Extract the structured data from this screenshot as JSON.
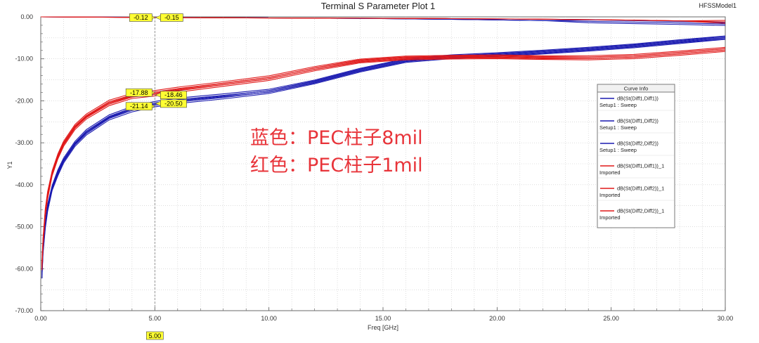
{
  "chart_data": {
    "type": "line",
    "title": "Terminal S Parameter Plot 1",
    "model_label": "HFSSModel1",
    "xlabel": "Freq [GHz]",
    "ylabel": "Y1",
    "xlim": [
      0,
      30
    ],
    "ylim": [
      -70,
      0
    ],
    "x_ticks": [
      "0.00",
      "5.00",
      "10.00",
      "15.00",
      "20.00",
      "25.00",
      "30.00"
    ],
    "y_ticks": [
      "0.00",
      "-10.00",
      "-20.00",
      "-30.00",
      "-40.00",
      "-50.00",
      "-60.00",
      "-70.00"
    ],
    "grid": true,
    "legend": {
      "title": "Curve Info",
      "placement": "right"
    },
    "annotation_lines": [
      "蓝色：PEC柱子8mil",
      "红色：PEC柱子1mil"
    ],
    "marker": {
      "x": 5.0,
      "x_label": "5.00",
      "labels": [
        "-0.12",
        "-0.15",
        "-17.88",
        "-18.46",
        "-21.14",
        "-20.50"
      ]
    },
    "colors": {
      "blue": "#1a1ab0",
      "red": "#e01818"
    },
    "series": [
      {
        "name": "dB(St(Diff1,Diff1))",
        "name2": "Setup1 : Sweep",
        "color": "blue",
        "x": [
          0.05,
          0.1,
          0.2,
          0.3,
          0.5,
          0.75,
          1,
          1.5,
          2,
          3,
          4,
          5,
          6,
          8,
          10,
          12,
          14,
          16,
          18,
          20,
          22,
          24,
          26,
          28,
          30
        ],
        "y": [
          -62,
          -56,
          -50,
          -46,
          -41,
          -37.5,
          -34.5,
          -30.5,
          -27.8,
          -24.2,
          -22.3,
          -21.1,
          -20.3,
          -19.2,
          -17.9,
          -15.6,
          -12.8,
          -10.5,
          -9.6,
          -9.1,
          -8.5,
          -7.8,
          -7.0,
          -6.0,
          -5.0
        ]
      },
      {
        "name": "dB(St(Diff1,Diff2))",
        "name2": "Setup1 : Sweep",
        "color": "blue",
        "x": [
          0,
          2,
          5,
          8,
          10,
          12,
          15,
          18,
          20,
          22,
          24,
          26,
          28,
          30
        ],
        "y": [
          0,
          -0.05,
          -0.12,
          -0.2,
          -0.25,
          -0.3,
          -0.42,
          -0.58,
          -0.72,
          -0.88,
          -1.05,
          -1.25,
          -1.45,
          -1.7
        ]
      },
      {
        "name": "dB(St(Diff2,Diff2))",
        "name2": "Setup1 : Sweep",
        "color": "blue",
        "x": [
          0.05,
          0.1,
          0.2,
          0.3,
          0.5,
          0.75,
          1,
          1.5,
          2,
          3,
          4,
          5,
          6,
          8,
          10,
          12,
          14,
          16,
          18,
          20,
          22,
          24,
          26,
          28,
          30
        ],
        "y": [
          -61,
          -55,
          -49,
          -45,
          -40.5,
          -36.8,
          -34,
          -30,
          -27.2,
          -23.7,
          -21.7,
          -20.5,
          -19.7,
          -18.7,
          -17.6,
          -15.4,
          -12.6,
          -10.3,
          -9.4,
          -8.9,
          -8.3,
          -7.6,
          -6.8,
          -5.8,
          -4.9
        ]
      },
      {
        "name": "dB(St(Diff1,Diff1))_1",
        "name2": "Imported",
        "color": "red",
        "x": [
          0.05,
          0.1,
          0.2,
          0.3,
          0.5,
          0.75,
          1,
          1.5,
          2,
          3,
          4,
          5,
          6,
          8,
          10,
          12,
          14,
          16,
          18,
          20,
          22,
          24,
          26,
          28,
          30
        ],
        "y": [
          -60,
          -54,
          -47,
          -43,
          -37.5,
          -33.5,
          -30.5,
          -26.5,
          -24,
          -20.8,
          -19.1,
          -18.5,
          -17.6,
          -16.2,
          -14.8,
          -12.5,
          -10.6,
          -9.9,
          -9.7,
          -9.6,
          -9.8,
          -9.9,
          -9.6,
          -8.8,
          -7.9
        ]
      },
      {
        "name": "dB(St(Diff1,Diff2))_1",
        "name2": "Imported",
        "color": "red",
        "x": [
          0,
          2,
          5,
          8,
          10,
          12,
          15,
          18,
          20,
          22,
          24,
          26,
          28,
          30
        ],
        "y": [
          0,
          -0.05,
          -0.15,
          -0.22,
          -0.27,
          -0.3,
          -0.35,
          -0.42,
          -0.48,
          -0.55,
          -0.65,
          -0.78,
          -0.95,
          -1.2
        ]
      },
      {
        "name": "dB(St(Diff2,Diff2))_1",
        "name2": "Imported",
        "color": "red",
        "x": [
          0.05,
          0.1,
          0.2,
          0.3,
          0.5,
          0.75,
          1,
          1.5,
          2,
          3,
          4,
          5,
          6,
          8,
          10,
          12,
          14,
          16,
          18,
          20,
          22,
          24,
          26,
          28,
          30
        ],
        "y": [
          -59,
          -53,
          -46,
          -42,
          -37,
          -33,
          -30,
          -26,
          -23.5,
          -20.2,
          -18.6,
          -17.9,
          -17.1,
          -15.8,
          -14.4,
          -12.2,
          -10.4,
          -9.7,
          -9.5,
          -9.4,
          -9.6,
          -9.6,
          -9.3,
          -8.5,
          -7.6
        ]
      }
    ]
  }
}
